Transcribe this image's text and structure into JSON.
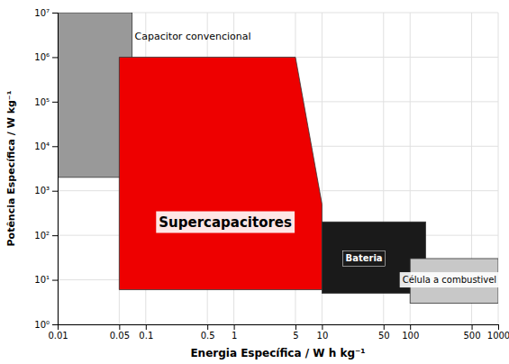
{
  "chart_data": {
    "type": "regions",
    "xlabel": "Energia Específica / W h kg⁻¹",
    "ylabel": "Potência Específica / W kg⁻¹",
    "log": true,
    "grid": true,
    "xlim": [
      0.01,
      1000
    ],
    "ylim": [
      1,
      10000000
    ],
    "xticks": [
      0.01,
      0.05,
      0.1,
      0.5,
      1,
      5,
      10,
      50,
      100,
      500,
      1000
    ],
    "yticks": [
      {
        "value": 1,
        "label": "10⁰"
      },
      {
        "value": 10,
        "label": "10¹"
      },
      {
        "value": 100,
        "label": "10²"
      },
      {
        "value": 1000,
        "label": "10³"
      },
      {
        "value": 10000,
        "label": "10⁴"
      },
      {
        "value": 100000,
        "label": "10⁵"
      },
      {
        "value": 1000000,
        "label": "10⁶"
      },
      {
        "value": 10000000,
        "label": "10⁷"
      }
    ],
    "series": [
      {
        "name": "Capacitor convencional",
        "type": "rect",
        "color": "#999999",
        "x": [
          0.01,
          0.07
        ],
        "y": [
          2000,
          10000000
        ],
        "label_x": 0.075,
        "label_y": 3000000
      },
      {
        "name": "Supercapacitores",
        "type": "polygon",
        "color": "#ee0000",
        "x": [
          0.05,
          0.05,
          5.0,
          10.0,
          10.0
        ],
        "y": [
          6.0,
          1000000,
          1000000,
          500,
          6.0
        ],
        "label_x": 0.8,
        "label_y": 200
      },
      {
        "name": "Bateria",
        "type": "rect",
        "color": "#1a1a1a",
        "x": [
          10.0,
          150.0
        ],
        "y": [
          5.0,
          200.0
        ],
        "label_x": 30,
        "label_y": 30
      },
      {
        "name": "Célula a combustivel",
        "type": "rect",
        "color": "#c8c8c8",
        "x": [
          100.0,
          1000.0
        ],
        "y": [
          3.0,
          30.0
        ],
        "label_x": 280,
        "label_y": 10
      }
    ]
  }
}
